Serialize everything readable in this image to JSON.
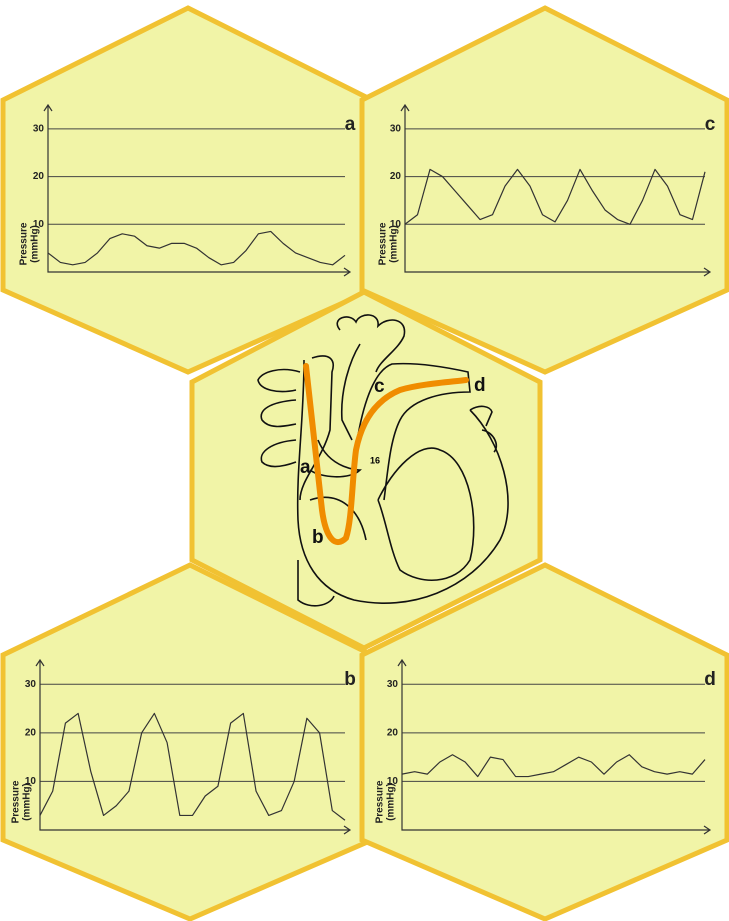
{
  "chart_data": [
    {
      "type": "line",
      "title": "a",
      "ylabel": [
        "Pressure",
        "(mmHg)"
      ],
      "ylim": [
        0,
        35
      ],
      "yticks": [
        10,
        20,
        30
      ],
      "grid": true,
      "xlim": [
        0,
        24
      ],
      "x": [
        0,
        1,
        2,
        3,
        4,
        5,
        6,
        7,
        8,
        9,
        10,
        11,
        12,
        13,
        14,
        15,
        16,
        17,
        18,
        19,
        20,
        21,
        22,
        23,
        24
      ],
      "series": [
        {
          "color": "#333333",
          "values": [
            4,
            2,
            1.5,
            2,
            4,
            7,
            8,
            7.5,
            5.5,
            5,
            6,
            6,
            5,
            3,
            1.5,
            2,
            4.5,
            8,
            8.5,
            6,
            4,
            3,
            2,
            1.5,
            3.5
          ]
        }
      ]
    },
    {
      "type": "line",
      "title": "c",
      "ylabel": [
        "Pressure",
        "(mmHg)"
      ],
      "ylim": [
        0,
        35
      ],
      "yticks": [
        10,
        20,
        30
      ],
      "grid": true,
      "xlim": [
        0,
        24
      ],
      "x": [
        0,
        1,
        2,
        3,
        4,
        5,
        6,
        7,
        8,
        9,
        10,
        11,
        12,
        13,
        14,
        15,
        16,
        17,
        18,
        19,
        20,
        21,
        22,
        23,
        24
      ],
      "series": [
        {
          "color": "#333333",
          "values": [
            10,
            12,
            21.5,
            20,
            17,
            14,
            11,
            12,
            18,
            21.5,
            18,
            12,
            10.5,
            15,
            21.5,
            17,
            13,
            11,
            10,
            15,
            21.5,
            18,
            12,
            11,
            21
          ]
        }
      ]
    },
    {
      "type": "line",
      "title": "b",
      "ylabel": [
        "Pressure",
        "(mmHg)"
      ],
      "ylim": [
        0,
        35
      ],
      "yticks": [
        10,
        20,
        30
      ],
      "grid": true,
      "xlim": [
        0,
        24
      ],
      "x": [
        0,
        1,
        2,
        3,
        4,
        5,
        6,
        7,
        8,
        9,
        10,
        11,
        12,
        13,
        14,
        15,
        16,
        17,
        18,
        19,
        20,
        21,
        22,
        23,
        24
      ],
      "series": [
        {
          "color": "#333333",
          "values": [
            3,
            8,
            22,
            24,
            12,
            3,
            5,
            8,
            20,
            24,
            18,
            3,
            3,
            7,
            9,
            22,
            24,
            8,
            3,
            4,
            10,
            23,
            20,
            4,
            2
          ]
        }
      ]
    },
    {
      "type": "line",
      "title": "d",
      "ylabel": [
        "Pressure",
        "(mmHg)"
      ],
      "ylim": [
        0,
        35
      ],
      "yticks": [
        10,
        20,
        30
      ],
      "grid": true,
      "xlim": [
        0,
        24
      ],
      "x": [
        0,
        1,
        2,
        3,
        4,
        5,
        6,
        7,
        8,
        9,
        10,
        11,
        12,
        13,
        14,
        15,
        16,
        17,
        18,
        19,
        20,
        21,
        22,
        23,
        24
      ],
      "series": [
        {
          "color": "#333333",
          "values": [
            11.5,
            12,
            11.5,
            14,
            15.5,
            14,
            11,
            15,
            14.5,
            11,
            11,
            11.5,
            12,
            13.5,
            15,
            14,
            11.5,
            14,
            15.5,
            13,
            12,
            11.5,
            12,
            11.5,
            14.5
          ]
        }
      ]
    }
  ],
  "diagram": {
    "labels": [
      "a",
      "b",
      "c",
      "d",
      "16"
    ]
  }
}
